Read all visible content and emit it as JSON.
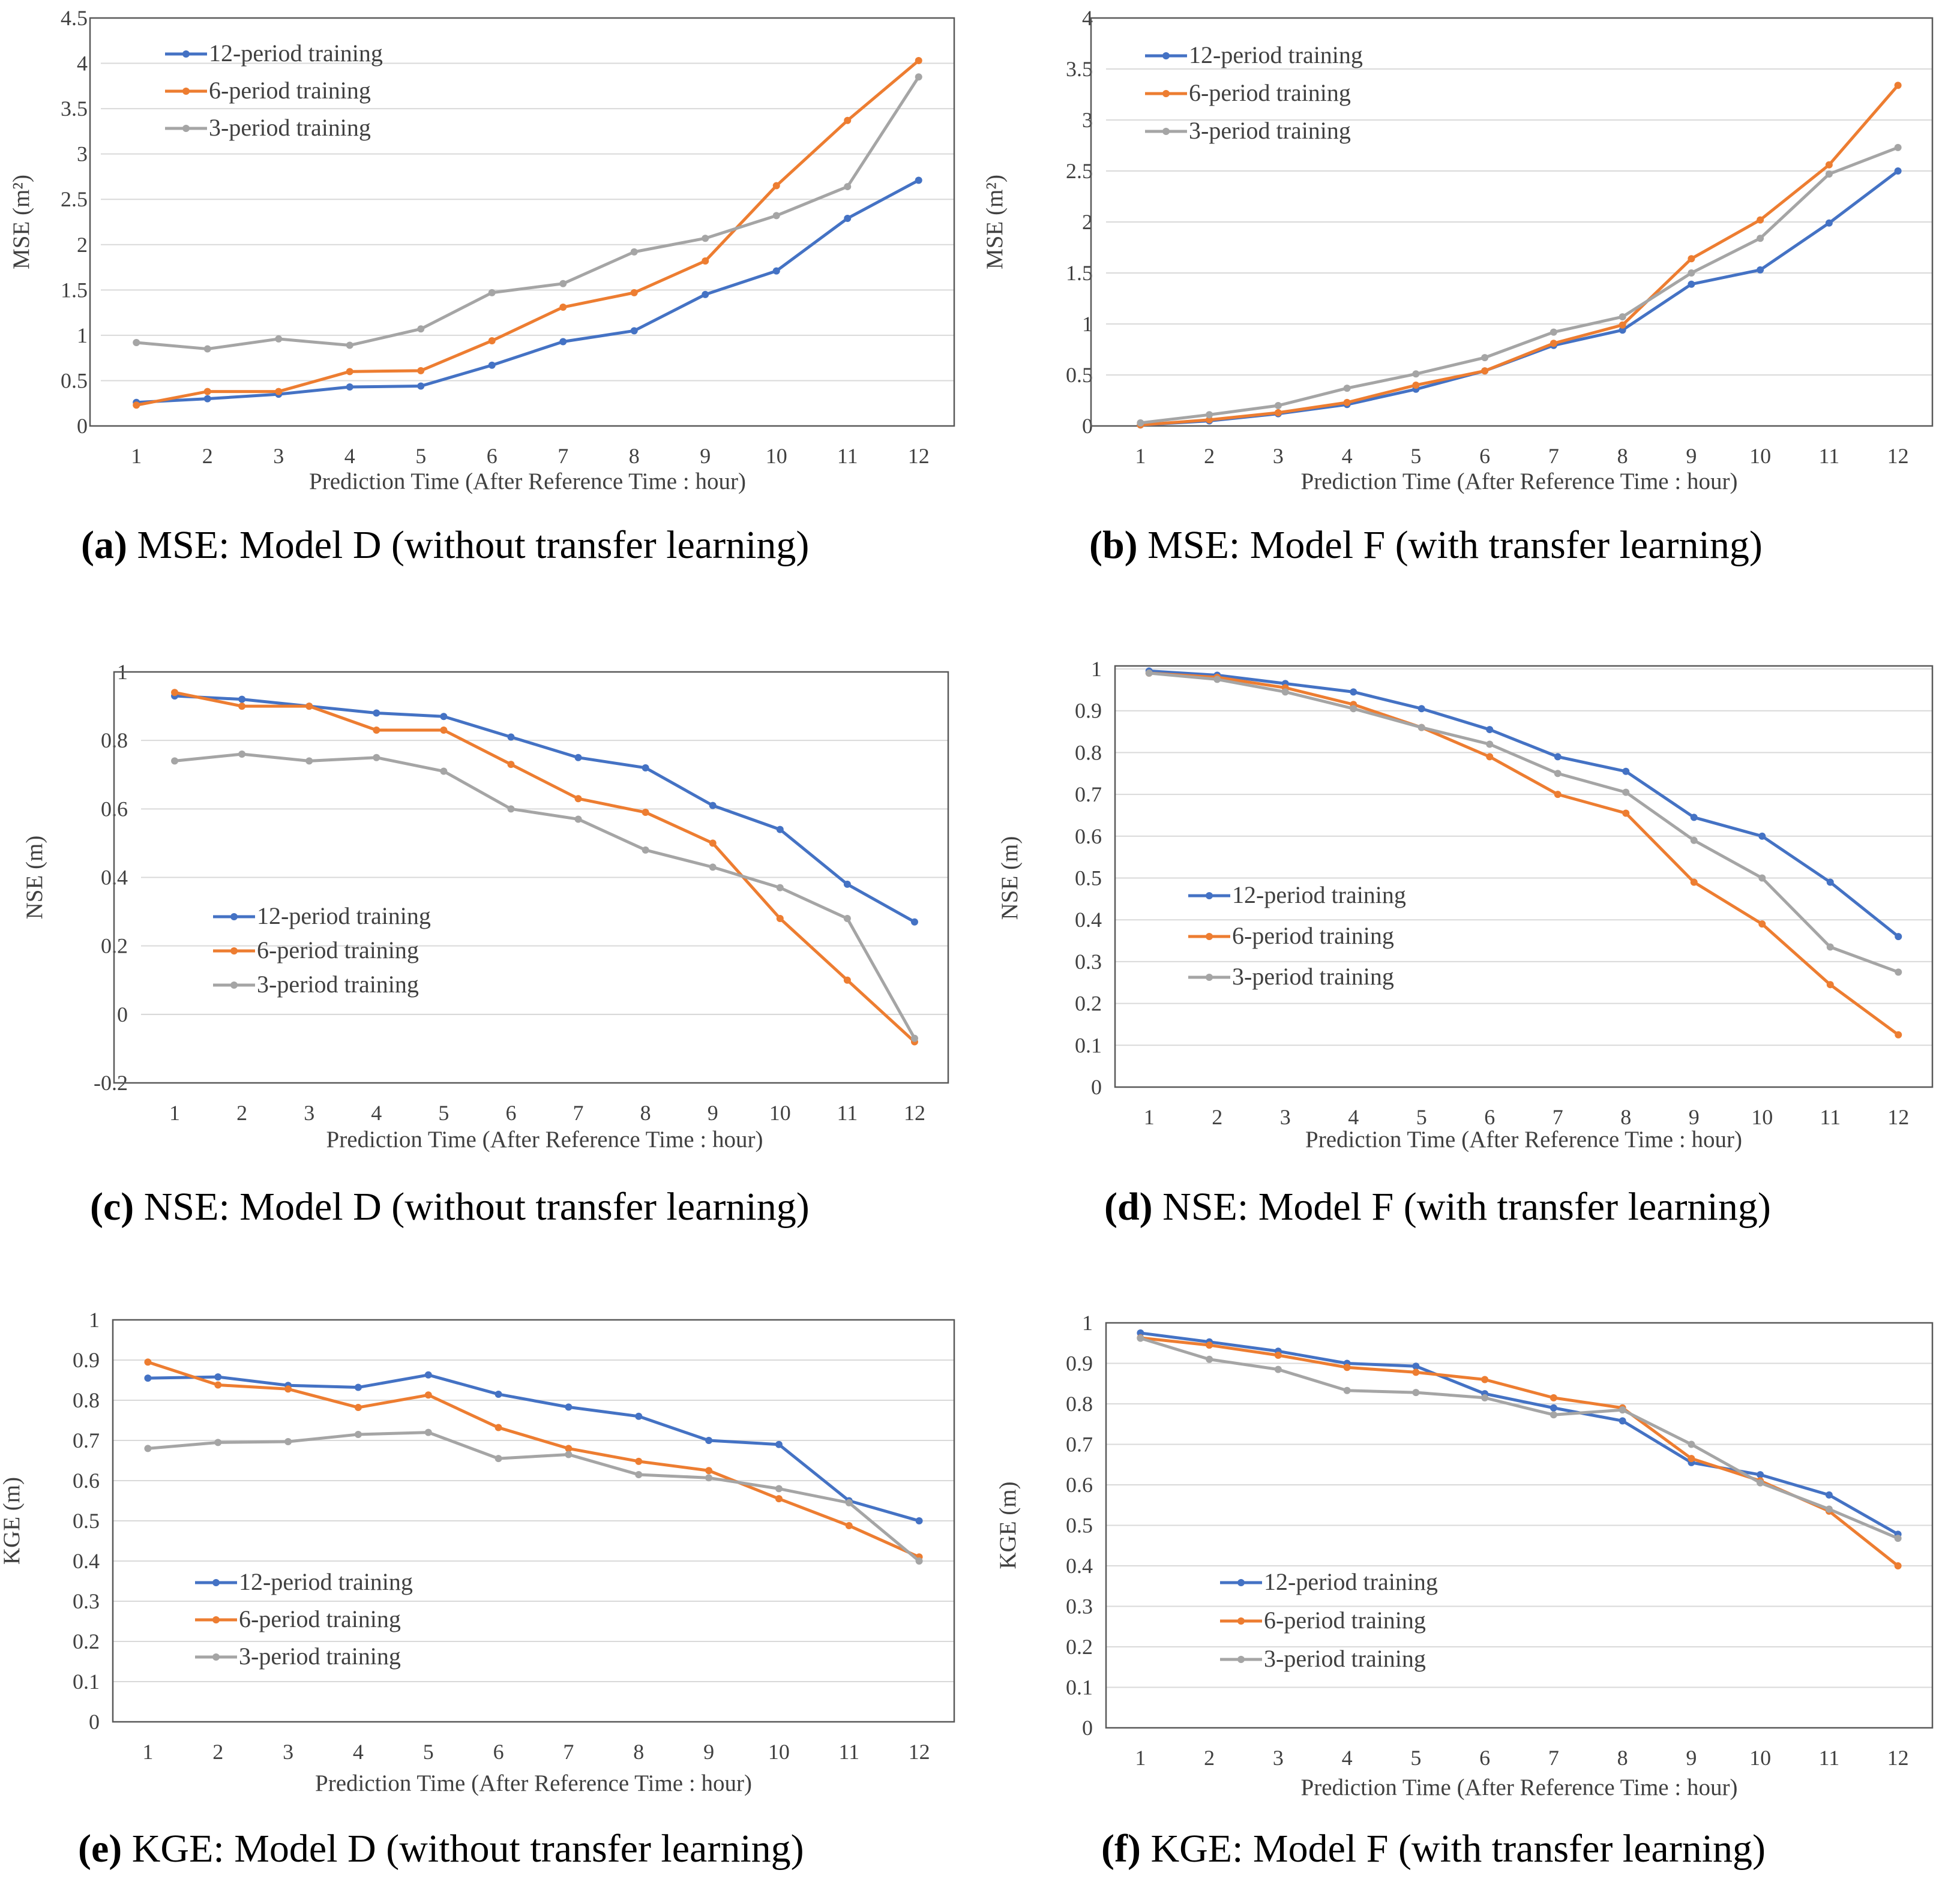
{
  "figure": {
    "series_names": [
      "12-period training",
      "6-period training",
      "3-period training"
    ],
    "series_colors": [
      "#4472C4",
      "#ED7D31",
      "#A5A5A5"
    ],
    "xlabel": "Prediction Time (After Reference Time : hour)"
  },
  "chart_data": [
    {
      "id": "a",
      "type": "line",
      "caption_letter": "(a)",
      "caption_text": " MSE: Model D (without transfer learning)",
      "ylabel": "MSE (m²)",
      "xlabel": "Prediction Time (After Reference Time : hour)",
      "x": [
        1,
        2,
        3,
        4,
        5,
        6,
        7,
        8,
        9,
        10,
        11,
        12
      ],
      "ylim": [
        0,
        4.5
      ],
      "yticks": [
        "0",
        "0.5",
        "1",
        "1.5",
        "2",
        "2.5",
        "3",
        "3.5",
        "4",
        "4.5"
      ],
      "legend_position": "top-left",
      "series": [
        {
          "name": "12-period training",
          "values": [
            0.26,
            0.3,
            0.35,
            0.43,
            0.44,
            0.67,
            0.93,
            1.05,
            1.45,
            1.71,
            2.29,
            2.71
          ]
        },
        {
          "name": "6-period training",
          "values": [
            0.23,
            0.38,
            0.38,
            0.6,
            0.61,
            0.94,
            1.31,
            1.47,
            1.82,
            2.65,
            3.37,
            4.03
          ]
        },
        {
          "name": "3-period training",
          "values": [
            0.92,
            0.85,
            0.96,
            0.89,
            1.07,
            1.47,
            1.57,
            1.92,
            2.07,
            2.32,
            2.64,
            3.85
          ]
        }
      ]
    },
    {
      "id": "b",
      "type": "line",
      "caption_letter": "(b)",
      "caption_text": " MSE: Model F (with transfer learning)",
      "ylabel": "MSE (m²)",
      "xlabel": "Prediction Time (After Reference Time : hour)",
      "x": [
        1,
        2,
        3,
        4,
        5,
        6,
        7,
        8,
        9,
        10,
        11,
        12
      ],
      "ylim": [
        0,
        4
      ],
      "yticks": [
        "0",
        "0.5",
        "1",
        "1.5",
        "2",
        "2.5",
        "3",
        "3.5",
        "4"
      ],
      "legend_position": "top-left",
      "series": [
        {
          "name": "12-period training",
          "values": [
            0.01,
            0.05,
            0.12,
            0.21,
            0.36,
            0.54,
            0.79,
            0.94,
            1.39,
            1.53,
            1.99,
            2.5
          ]
        },
        {
          "name": "6-period training",
          "values": [
            0.01,
            0.06,
            0.13,
            0.23,
            0.4,
            0.54,
            0.81,
            0.99,
            1.64,
            2.02,
            2.56,
            3.34
          ]
        },
        {
          "name": "3-period training",
          "values": [
            0.03,
            0.11,
            0.2,
            0.37,
            0.51,
            0.67,
            0.92,
            1.07,
            1.5,
            1.84,
            2.47,
            2.73
          ]
        }
      ]
    },
    {
      "id": "c",
      "type": "line",
      "caption_letter": "(c)",
      "caption_text": " NSE: Model D (without transfer learning)",
      "ylabel": "NSE (m)",
      "xlabel": "Prediction Time (After Reference Time : hour)",
      "x": [
        1,
        2,
        3,
        4,
        5,
        6,
        7,
        8,
        9,
        10,
        11,
        12
      ],
      "ylim": [
        -0.2,
        1
      ],
      "yticks": [
        "-0.2",
        "0",
        "0.2",
        "0.4",
        "0.6",
        "0.8",
        "1"
      ],
      "legend_position": "bottom-left",
      "series": [
        {
          "name": "12-period training",
          "values": [
            0.93,
            0.92,
            0.9,
            0.88,
            0.87,
            0.81,
            0.75,
            0.72,
            0.61,
            0.54,
            0.38,
            0.27
          ]
        },
        {
          "name": "6-period training",
          "values": [
            0.94,
            0.9,
            0.9,
            0.83,
            0.83,
            0.73,
            0.63,
            0.59,
            0.5,
            0.28,
            0.1,
            -0.08
          ]
        },
        {
          "name": "3-period training",
          "values": [
            0.74,
            0.76,
            0.74,
            0.75,
            0.71,
            0.6,
            0.57,
            0.48,
            0.43,
            0.37,
            0.28,
            -0.07
          ]
        }
      ]
    },
    {
      "id": "d",
      "type": "line",
      "caption_letter": "(d)",
      "caption_text": " NSE: Model F (with transfer learning)",
      "ylabel": "NSE (m)",
      "xlabel": "Prediction Time (After Reference Time : hour)",
      "x": [
        1,
        2,
        3,
        4,
        5,
        6,
        7,
        8,
        9,
        10,
        11,
        12
      ],
      "ylim": [
        0,
        1
      ],
      "yticks": [
        "0",
        "0.1",
        "0.2",
        "0.3",
        "0.4",
        "0.5",
        "0.6",
        "0.7",
        "0.8",
        "0.9",
        "1"
      ],
      "legend_position": "bottom-left",
      "series": [
        {
          "name": "12-period training",
          "values": [
            0.995,
            0.985,
            0.965,
            0.945,
            0.905,
            0.855,
            0.79,
            0.755,
            0.645,
            0.6,
            0.49,
            0.36
          ]
        },
        {
          "name": "6-period training",
          "values": [
            0.99,
            0.98,
            0.955,
            0.915,
            0.86,
            0.79,
            0.7,
            0.655,
            0.49,
            0.39,
            0.245,
            0.125
          ]
        },
        {
          "name": "3-period training",
          "values": [
            0.99,
            0.975,
            0.945,
            0.905,
            0.86,
            0.82,
            0.75,
            0.705,
            0.59,
            0.5,
            0.335,
            0.275
          ]
        }
      ]
    },
    {
      "id": "e",
      "type": "line",
      "caption_letter": "(e)",
      "caption_text": " KGE: Model D (without transfer learning)",
      "ylabel": "KGE (m)",
      "xlabel": "Prediction Time (After Reference Time : hour)",
      "x": [
        1,
        2,
        3,
        4,
        5,
        6,
        7,
        8,
        9,
        10,
        11,
        12
      ],
      "ylim": [
        0,
        1
      ],
      "yticks": [
        "0",
        "0.1",
        "0.2",
        "0.3",
        "0.4",
        "0.5",
        "0.6",
        "0.7",
        "0.8",
        "0.9",
        "1"
      ],
      "legend_position": "bottom-left",
      "series": [
        {
          "name": "12-period training",
          "values": [
            0.855,
            0.858,
            0.837,
            0.832,
            0.863,
            0.815,
            0.783,
            0.76,
            0.7,
            0.69,
            0.55,
            0.5
          ]
        },
        {
          "name": "6-period training",
          "values": [
            0.895,
            0.838,
            0.828,
            0.782,
            0.813,
            0.732,
            0.68,
            0.648,
            0.625,
            0.555,
            0.488,
            0.41
          ]
        },
        {
          "name": "3-period training",
          "values": [
            0.68,
            0.695,
            0.697,
            0.715,
            0.72,
            0.655,
            0.665,
            0.615,
            0.607,
            0.58,
            0.545,
            0.4
          ]
        }
      ]
    },
    {
      "id": "f",
      "type": "line",
      "caption_letter": "(f)",
      "caption_text": " KGE: Model F (with transfer learning)",
      "ylabel": "KGE (m)",
      "xlabel": "Prediction Time (After Reference Time : hour)",
      "x": [
        1,
        2,
        3,
        4,
        5,
        6,
        7,
        8,
        9,
        10,
        11,
        12
      ],
      "ylim": [
        0,
        1
      ],
      "yticks": [
        "0",
        "0.1",
        "0.2",
        "0.3",
        "0.4",
        "0.5",
        "0.6",
        "0.7",
        "0.8",
        "0.9",
        "1"
      ],
      "legend_position": "bottom-left",
      "series": [
        {
          "name": "12-period training",
          "values": [
            0.975,
            0.953,
            0.93,
            0.9,
            0.893,
            0.825,
            0.79,
            0.758,
            0.655,
            0.625,
            0.575,
            0.478
          ]
        },
        {
          "name": "6-period training",
          "values": [
            0.963,
            0.945,
            0.92,
            0.89,
            0.878,
            0.86,
            0.815,
            0.79,
            0.665,
            0.61,
            0.535,
            0.4
          ]
        },
        {
          "name": "3-period training",
          "values": [
            0.962,
            0.91,
            0.885,
            0.833,
            0.828,
            0.815,
            0.773,
            0.785,
            0.7,
            0.605,
            0.54,
            0.468
          ]
        }
      ]
    }
  ]
}
